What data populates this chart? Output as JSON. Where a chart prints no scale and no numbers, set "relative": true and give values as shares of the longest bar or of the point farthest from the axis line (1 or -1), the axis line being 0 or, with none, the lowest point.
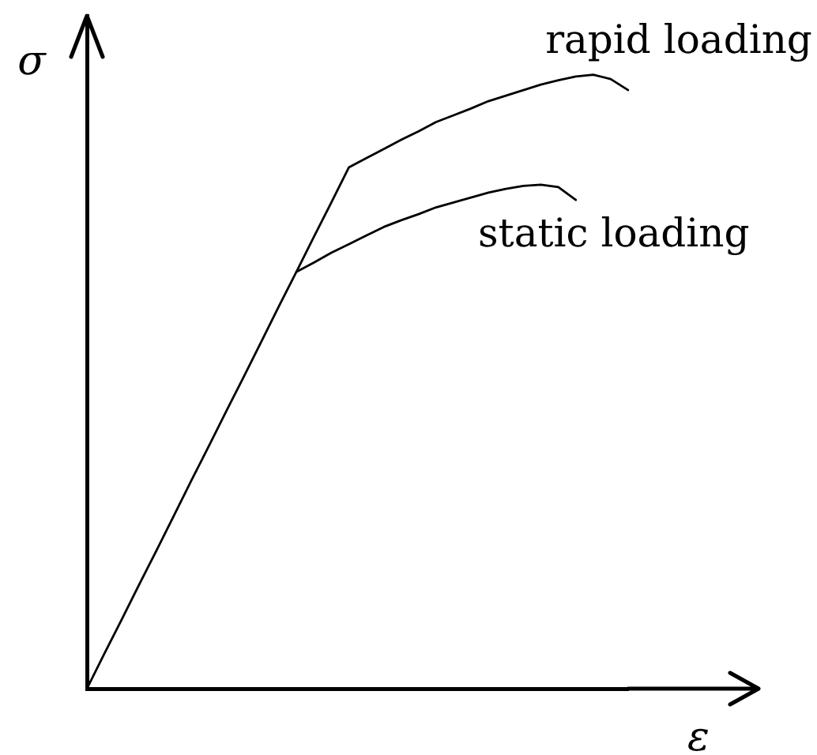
{
  "chart_data": {
    "type": "line",
    "xlabel": "ε",
    "ylabel": "σ",
    "relative": true,
    "legend": false,
    "marker": "none",
    "line_style": "solid",
    "categories": [
      null,
      null,
      null,
      null,
      null,
      null,
      null,
      null,
      null,
      null,
      null,
      null,
      null,
      null,
      null,
      null,
      null,
      null,
      null,
      null,
      null,
      null,
      null,
      null,
      null,
      null,
      null,
      null,
      null,
      null,
      null,
      null
    ],
    "series": [
      {
        "name": "rapid loading",
        "color": "#000000",
        "values": [
          0,
          0.057,
          0.113,
          0.17,
          0.226,
          0.283,
          0.34,
          0.396,
          0.453,
          0.509,
          0.566,
          0.623,
          0.679,
          0.736,
          0.792,
          0.849,
          0.864,
          0.879,
          0.894,
          0.908,
          0.923,
          0.934,
          0.945,
          0.957,
          0.966,
          0.975,
          0.984,
          0.991,
          0.997,
          1.0,
          0.993,
          0.975
        ]
      },
      {
        "name": "static loading",
        "color": "#000000",
        "values": [
          null,
          null,
          null,
          null,
          null,
          null,
          null,
          null,
          null,
          null,
          null,
          null,
          0.679,
          0.694,
          0.71,
          0.724,
          0.738,
          0.752,
          0.763,
          0.773,
          0.784,
          0.792,
          0.8,
          0.808,
          0.814,
          0.819,
          0.821,
          0.817,
          0.796,
          null,
          null,
          null
        ]
      }
    ]
  }
}
